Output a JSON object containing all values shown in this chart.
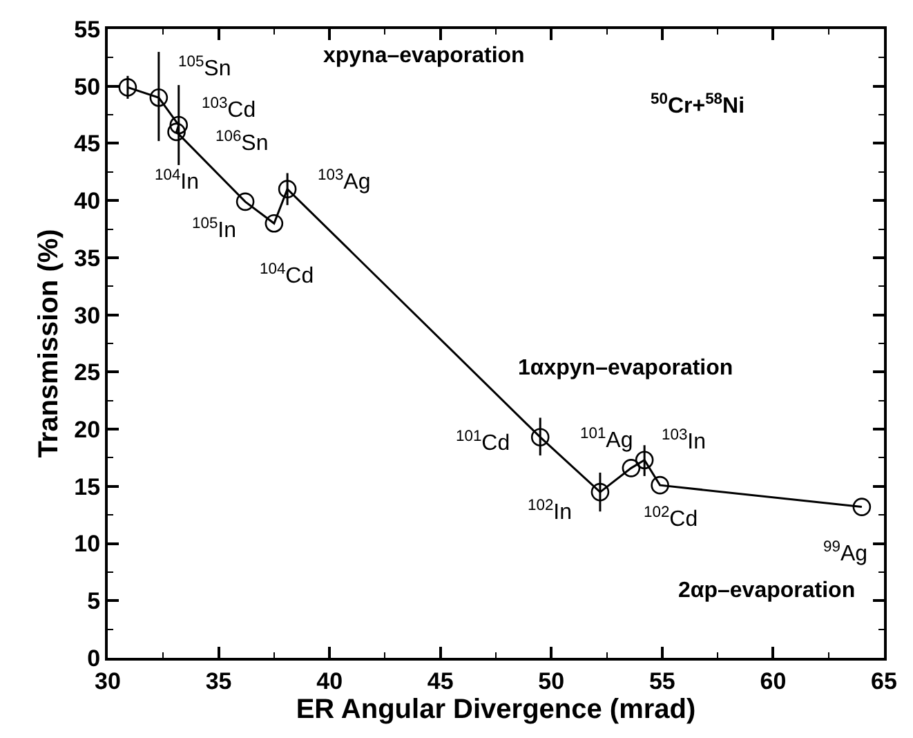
{
  "chart_data": {
    "type": "line",
    "xlabel": "ER Angular Divergence (mrad)",
    "ylabel": "Transmission (%)",
    "x": [
      30.9,
      32.3,
      33.2,
      33.1,
      36.2,
      37.5,
      38.1,
      49.5,
      52.2,
      53.6,
      54.2,
      54.9,
      64.0
    ],
    "values": [
      49.9,
      49.0,
      46.6,
      46.0,
      39.9,
      38.0,
      41.0,
      19.3,
      14.5,
      16.6,
      17.3,
      15.1,
      13.2
    ],
    "errors": [
      1,
      [
        45.2,
        53.0
      ],
      [
        43.1,
        50.1
      ],
      null,
      null,
      null,
      [
        39.6,
        42.4
      ],
      [
        17.7,
        21.0
      ],
      [
        12.8,
        16.2
      ],
      null,
      [
        15.9,
        18.6
      ],
      null,
      null
    ],
    "color": "#000000",
    "marker": "circle",
    "line_style": "solid",
    "xlim": [
      30,
      65
    ],
    "xticks": [
      30,
      35,
      40,
      45,
      50,
      55,
      60,
      65
    ],
    "ylim": [
      0,
      55
    ],
    "yticks": [
      0,
      5,
      10,
      15,
      20,
      25,
      30,
      35,
      40,
      45,
      50,
      55
    ],
    "legend": false,
    "annotations": [
      {
        "text": "$^{105}$Sn",
        "x": 30.9,
        "y": 49.9
      },
      {
        "text": "$^{103}$Cd",
        "x": 32.3,
        "y": 49.0
      },
      {
        "text": "$^{106}$Sn",
        "x": 33.2,
        "y": 46.6
      },
      {
        "text": "$^{104}$In",
        "x": 33.1,
        "y": 46.0
      },
      {
        "text": "$^{105}$In",
        "x": 36.2,
        "y": 39.9
      },
      {
        "text": "$^{104}$Cd",
        "x": 37.5,
        "y": 38.0
      },
      {
        "text": "$^{103}$Ag",
        "x": 38.1,
        "y": 41.0
      },
      {
        "text": "$^{101}$Cd",
        "x": 49.5,
        "y": 19.3
      },
      {
        "text": "$^{102}$In",
        "x": 52.2,
        "y": 14.5
      },
      {
        "text": "$^{101}$Ag",
        "x": 53.6,
        "y": 16.6
      },
      {
        "text": "$^{103}$In",
        "x": 54.2,
        "y": 17.3
      },
      {
        "text": "$^{102}$Cd",
        "x": 54.9,
        "y": 15.1
      },
      {
        "text": "$^{99}$Ag",
        "x": 64.0,
        "y": 13.2
      },
      "xpyna–evaporation",
      "$^{50}$Cr+$^{58}$Ni",
      "1αxpyn–evaporation",
      "2αp–evaporation"
    ]
  }
}
